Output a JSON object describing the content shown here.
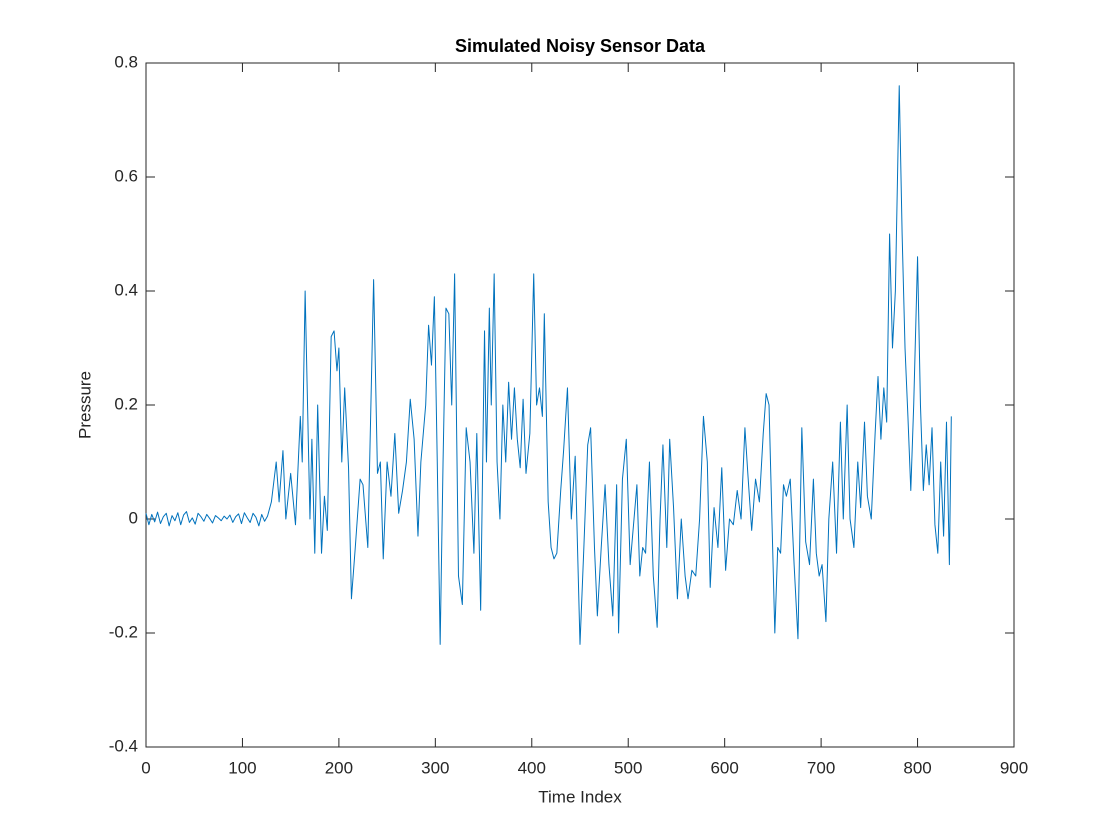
{
  "chart_data": {
    "type": "line",
    "title": "Simulated Noisy Sensor Data",
    "x_label": "Time Index",
    "y_label": "Pressure",
    "xlim": [
      0,
      900
    ],
    "ylim": [
      -0.4,
      0.8
    ],
    "xticks": [
      0,
      100,
      200,
      300,
      400,
      500,
      600,
      700,
      800,
      900
    ],
    "yticks": [
      -0.4,
      -0.2,
      0,
      0.2,
      0.4,
      0.6,
      0.8
    ],
    "grid": false,
    "x": [
      0,
      3,
      6,
      9,
      12,
      15,
      18,
      21,
      24,
      27,
      30,
      33,
      36,
      39,
      42,
      45,
      48,
      51,
      54,
      57,
      60,
      63,
      66,
      69,
      72,
      75,
      78,
      81,
      84,
      87,
      90,
      93,
      96,
      99,
      102,
      105,
      108,
      111,
      114,
      117,
      120,
      123,
      126,
      130,
      135,
      138,
      142,
      145,
      150,
      155,
      160,
      162,
      165,
      170,
      172,
      175,
      178,
      182,
      185,
      188,
      192,
      195,
      198,
      200,
      203,
      206,
      210,
      213,
      217,
      222,
      225,
      230,
      236,
      240,
      243,
      246,
      250,
      254,
      258,
      262,
      266,
      270,
      274,
      278,
      282,
      285,
      290,
      293,
      296,
      299,
      302,
      305,
      308,
      311,
      314,
      317,
      320,
      324,
      328,
      332,
      336,
      340,
      343,
      347,
      351,
      353,
      356,
      358,
      361,
      364,
      367,
      370,
      373,
      376,
      379,
      382,
      385,
      388,
      391,
      394,
      398,
      402,
      405,
      408,
      411,
      413,
      417,
      420,
      423,
      426,
      430,
      433,
      437,
      441,
      445,
      450,
      454,
      458,
      461,
      465,
      468,
      472,
      476,
      480,
      484,
      488,
      490,
      494,
      498,
      502,
      506,
      509,
      512,
      515,
      518,
      522,
      526,
      530,
      533,
      536,
      540,
      543,
      547,
      551,
      555,
      559,
      562,
      566,
      570,
      574,
      578,
      582,
      585,
      589,
      593,
      597,
      601,
      605,
      609,
      613,
      617,
      621,
      624,
      628,
      632,
      636,
      640,
      643,
      646,
      649,
      652,
      655,
      658,
      661,
      664,
      668,
      672,
      676,
      680,
      684,
      688,
      692,
      695,
      698,
      701,
      705,
      708,
      712,
      716,
      720,
      723,
      727,
      730,
      734,
      738,
      741,
      745,
      748,
      752,
      756,
      759,
      762,
      765,
      768,
      771,
      774,
      777,
      781,
      784,
      787,
      790,
      793,
      796,
      800,
      803,
      806,
      809,
      812,
      815,
      818,
      821,
      824,
      827,
      830,
      833,
      835
    ],
    "series": [
      {
        "name": "Pressure",
        "color": "#0072bd",
        "values": [
          0.01,
          -0.01,
          0.008,
          -0.005,
          0.012,
          -0.008,
          0.004,
          0.01,
          -0.012,
          0.006,
          -0.003,
          0.011,
          -0.01,
          0.007,
          0.013,
          -0.006,
          0.002,
          -0.009,
          0.01,
          0.004,
          -0.004,
          0.008,
          0.001,
          -0.007,
          0.006,
          0.002,
          -0.003,
          0.005,
          0.0,
          0.007,
          -0.006,
          0.004,
          0.009,
          -0.008,
          0.011,
          0.002,
          -0.006,
          0.01,
          0.003,
          -0.012,
          0.008,
          -0.004,
          0.005,
          0.03,
          0.1,
          0.03,
          0.12,
          0.0,
          0.08,
          -0.01,
          0.18,
          0.1,
          0.4,
          0.0,
          0.14,
          -0.06,
          0.2,
          -0.06,
          0.04,
          -0.02,
          0.32,
          0.33,
          0.26,
          0.3,
          0.1,
          0.23,
          0.09,
          -0.14,
          -0.05,
          0.07,
          0.06,
          -0.05,
          0.42,
          0.08,
          0.1,
          -0.07,
          0.1,
          0.04,
          0.15,
          0.01,
          0.05,
          0.1,
          0.21,
          0.14,
          -0.03,
          0.1,
          0.2,
          0.34,
          0.27,
          0.39,
          0.1,
          -0.22,
          0.1,
          0.37,
          0.36,
          0.2,
          0.43,
          -0.1,
          -0.15,
          0.16,
          0.1,
          -0.06,
          0.15,
          -0.16,
          0.33,
          0.1,
          0.37,
          0.2,
          0.43,
          0.1,
          0.0,
          0.2,
          0.1,
          0.24,
          0.14,
          0.23,
          0.14,
          0.09,
          0.21,
          0.08,
          0.15,
          0.43,
          0.2,
          0.23,
          0.18,
          0.36,
          0.03,
          -0.05,
          -0.07,
          -0.06,
          0.05,
          0.12,
          0.23,
          0.0,
          0.11,
          -0.22,
          -0.05,
          0.13,
          0.16,
          -0.05,
          -0.17,
          -0.05,
          0.06,
          -0.08,
          -0.17,
          0.06,
          -0.2,
          0.07,
          0.14,
          -0.08,
          0.0,
          0.06,
          -0.1,
          -0.05,
          -0.06,
          0.1,
          -0.1,
          -0.19,
          0.0,
          0.13,
          -0.05,
          0.14,
          0.02,
          -0.14,
          0.0,
          -0.1,
          -0.14,
          -0.09,
          -0.1,
          0.0,
          0.18,
          0.1,
          -0.12,
          0.02,
          -0.05,
          0.09,
          -0.09,
          0.0,
          -0.01,
          0.05,
          0.0,
          0.16,
          0.08,
          -0.02,
          0.07,
          0.03,
          0.15,
          0.22,
          0.2,
          0.0,
          -0.2,
          -0.05,
          -0.06,
          0.06,
          0.04,
          0.07,
          -0.08,
          -0.21,
          0.16,
          -0.04,
          -0.08,
          0.07,
          -0.06,
          -0.1,
          -0.08,
          -0.18,
          0.0,
          0.1,
          -0.06,
          0.17,
          0.0,
          0.2,
          0.0,
          -0.05,
          0.1,
          0.02,
          0.17,
          0.04,
          0.0,
          0.15,
          0.25,
          0.14,
          0.23,
          0.17,
          0.5,
          0.3,
          0.4,
          0.76,
          0.5,
          0.3,
          0.18,
          0.05,
          0.2,
          0.46,
          0.2,
          0.05,
          0.13,
          0.06,
          0.16,
          -0.01,
          -0.06,
          0.1,
          -0.03,
          0.17,
          -0.08,
          0.18
        ]
      }
    ]
  }
}
